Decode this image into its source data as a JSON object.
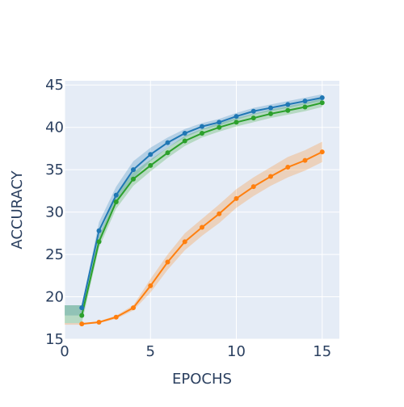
{
  "chart_data": {
    "type": "line",
    "title": "",
    "xlabel": "EPOCHS",
    "ylabel": "ACCURACY",
    "xlim": [
      0,
      16
    ],
    "ylim": [
      15,
      45.5
    ],
    "x_ticks": [
      0,
      5,
      10,
      15
    ],
    "y_ticks": [
      15,
      20,
      25,
      30,
      35,
      40,
      45
    ],
    "x_tick_labels": [
      "0",
      "5",
      "10",
      "15"
    ],
    "y_tick_labels": [
      "15",
      "20",
      "25",
      "30",
      "35",
      "40",
      "45"
    ],
    "grid": true,
    "legend": "none",
    "x": [
      1,
      2,
      3,
      4,
      5,
      6,
      7,
      8,
      9,
      10,
      11,
      12,
      13,
      14,
      15
    ],
    "series": [
      {
        "color": "#1f77b4",
        "values": [
          18.7,
          27.8,
          32.0,
          35.0,
          36.8,
          38.2,
          39.3,
          40.1,
          40.6,
          41.3,
          41.9,
          42.3,
          42.7,
          43.1,
          43.5
        ],
        "band": [
          [
            17.8,
            19.0
          ],
          [
            26.8,
            28.8
          ],
          [
            31.0,
            33.0
          ],
          [
            34.0,
            36.0
          ],
          [
            36.0,
            37.6
          ],
          [
            37.6,
            38.8
          ],
          [
            38.8,
            39.8
          ],
          [
            39.7,
            40.5
          ],
          [
            40.2,
            41.0
          ],
          [
            40.9,
            41.7
          ],
          [
            41.5,
            42.3
          ],
          [
            41.9,
            42.7
          ],
          [
            42.3,
            43.1
          ],
          [
            42.7,
            43.5
          ],
          [
            43.1,
            43.9
          ]
        ]
      },
      {
        "color": "#2ca02c",
        "values": [
          17.8,
          26.5,
          31.2,
          33.9,
          35.5,
          37.0,
          38.4,
          39.3,
          40.0,
          40.6,
          41.1,
          41.6,
          42.0,
          42.4,
          42.9
        ],
        "band": [
          [
            16.9,
            19.0
          ],
          [
            25.8,
            27.2
          ],
          [
            30.4,
            32.0
          ],
          [
            33.1,
            34.7
          ],
          [
            34.8,
            36.2
          ],
          [
            36.4,
            37.6
          ],
          [
            37.8,
            39.0
          ],
          [
            38.8,
            39.8
          ],
          [
            39.5,
            40.5
          ],
          [
            40.1,
            41.1
          ],
          [
            40.6,
            41.6
          ],
          [
            41.1,
            42.1
          ],
          [
            41.5,
            42.5
          ],
          [
            41.9,
            42.9
          ],
          [
            42.4,
            43.4
          ]
        ]
      },
      {
        "color": "#ff7f0e",
        "values": [
          16.8,
          17.0,
          17.6,
          18.7,
          21.3,
          24.1,
          26.5,
          28.2,
          29.8,
          31.6,
          33.0,
          34.2,
          35.3,
          36.1,
          37.1
        ],
        "band": [
          [
            16.7,
            16.9
          ],
          [
            16.9,
            17.1
          ],
          [
            17.4,
            17.8
          ],
          [
            18.4,
            19.0
          ],
          [
            20.5,
            22.1
          ],
          [
            23.2,
            25.0
          ],
          [
            25.5,
            27.5
          ],
          [
            27.2,
            29.2
          ],
          [
            28.7,
            30.9
          ],
          [
            30.5,
            32.7
          ],
          [
            31.9,
            34.1
          ],
          [
            33.1,
            35.3
          ],
          [
            34.1,
            36.5
          ],
          [
            34.9,
            37.3
          ],
          [
            35.9,
            38.3
          ]
        ]
      }
    ]
  }
}
